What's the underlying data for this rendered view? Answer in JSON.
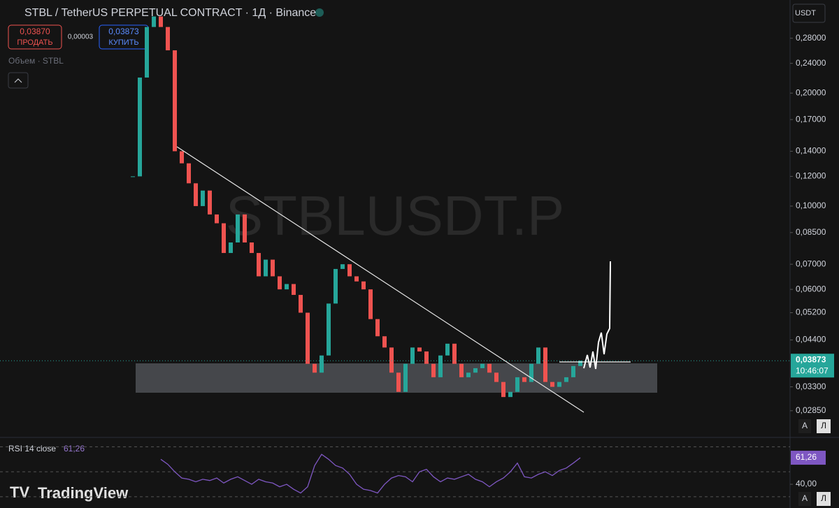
{
  "header": {
    "symbol": "STBL / TetherUS PERPETUAL CONTRACT · 1Д · Binance",
    "sell_price": "0,03870",
    "sell": "ПРОДАТЬ",
    "spread": "0,00003",
    "buy_price": "0,03873",
    "buy": "КУПИТЬ",
    "volume": "Объем · STBL",
    "currency": "USDT",
    "auto": "А",
    "log": "Л",
    "brand": "TradingView"
  },
  "chart_data": {
    "type": "candlestick",
    "watermark": "STBLUSDT.P",
    "log": true,
    "ylim": [
      0.0243,
      0.354
    ],
    "yticks": [
      {
        "value": 0.28,
        "label": "0,28000"
      },
      {
        "value": 0.24,
        "label": "0,24000"
      },
      {
        "value": 0.2,
        "label": "0,20000"
      },
      {
        "value": 0.17,
        "label": "0,17000"
      },
      {
        "value": 0.14,
        "label": "0,14000"
      },
      {
        "value": 0.12,
        "label": "0,12000"
      },
      {
        "value": 0.1,
        "label": "0,10000"
      },
      {
        "value": 0.085,
        "label": "0,08500"
      },
      {
        "value": 0.07,
        "label": "0,07000"
      },
      {
        "value": 0.06,
        "label": "0,06000"
      },
      {
        "value": 0.052,
        "label": "0,05200"
      },
      {
        "value": 0.044,
        "label": "0,04400"
      },
      {
        "value": 0.033,
        "label": "0,03300"
      },
      {
        "value": 0.0285,
        "label": "0,02850"
      }
    ],
    "up_color": "#26a69a",
    "down_color": "#ef5350",
    "values": [
      0.12,
      0.22,
      0.3,
      0.32,
      0.3,
      0.26,
      0.14,
      0.13,
      0.115,
      0.1,
      0.11,
      0.095,
      0.09,
      0.075,
      0.08,
      0.095,
      0.08,
      0.075,
      0.065,
      0.072,
      0.065,
      0.06,
      0.062,
      0.058,
      0.052,
      0.038,
      0.036,
      0.04,
      0.055,
      0.068,
      0.07,
      0.065,
      0.063,
      0.06,
      0.05,
      0.045,
      0.042,
      0.036,
      0.032,
      0.038,
      0.042,
      0.041,
      0.038,
      0.035,
      0.04,
      0.043,
      0.038,
      0.035,
      0.036,
      0.037,
      0.038,
      0.036,
      0.034,
      0.031,
      0.032,
      0.035,
      0.034,
      0.038,
      0.042,
      0.034,
      0.033,
      0.034,
      0.035,
      0.0375,
      0.03873
    ],
    "last_price_label": "0,03873",
    "countdown": "10:46:07",
    "rsi": {
      "name": "RSI 14 close",
      "value_label": "61,26",
      "color": "#7e57c2",
      "ylim": [
        21,
        76.4
      ],
      "bands": [
        70,
        50,
        30
      ],
      "yticks": [
        {
          "value": 40,
          "label": "40,00"
        }
      ],
      "values": [
        60,
        56,
        50,
        45,
        44,
        42,
        44,
        43,
        45,
        41,
        44,
        46,
        43,
        40,
        44,
        42,
        41,
        38,
        40,
        36,
        33,
        38,
        55,
        64,
        60,
        55,
        53,
        48,
        40,
        36,
        35,
        33,
        40,
        45,
        47,
        46,
        42,
        50,
        52,
        46,
        42,
        45,
        44,
        46,
        48,
        44,
        42,
        38,
        42,
        45,
        50,
        57,
        46,
        45,
        48,
        50,
        47,
        51,
        53,
        57,
        61.26
      ]
    }
  }
}
